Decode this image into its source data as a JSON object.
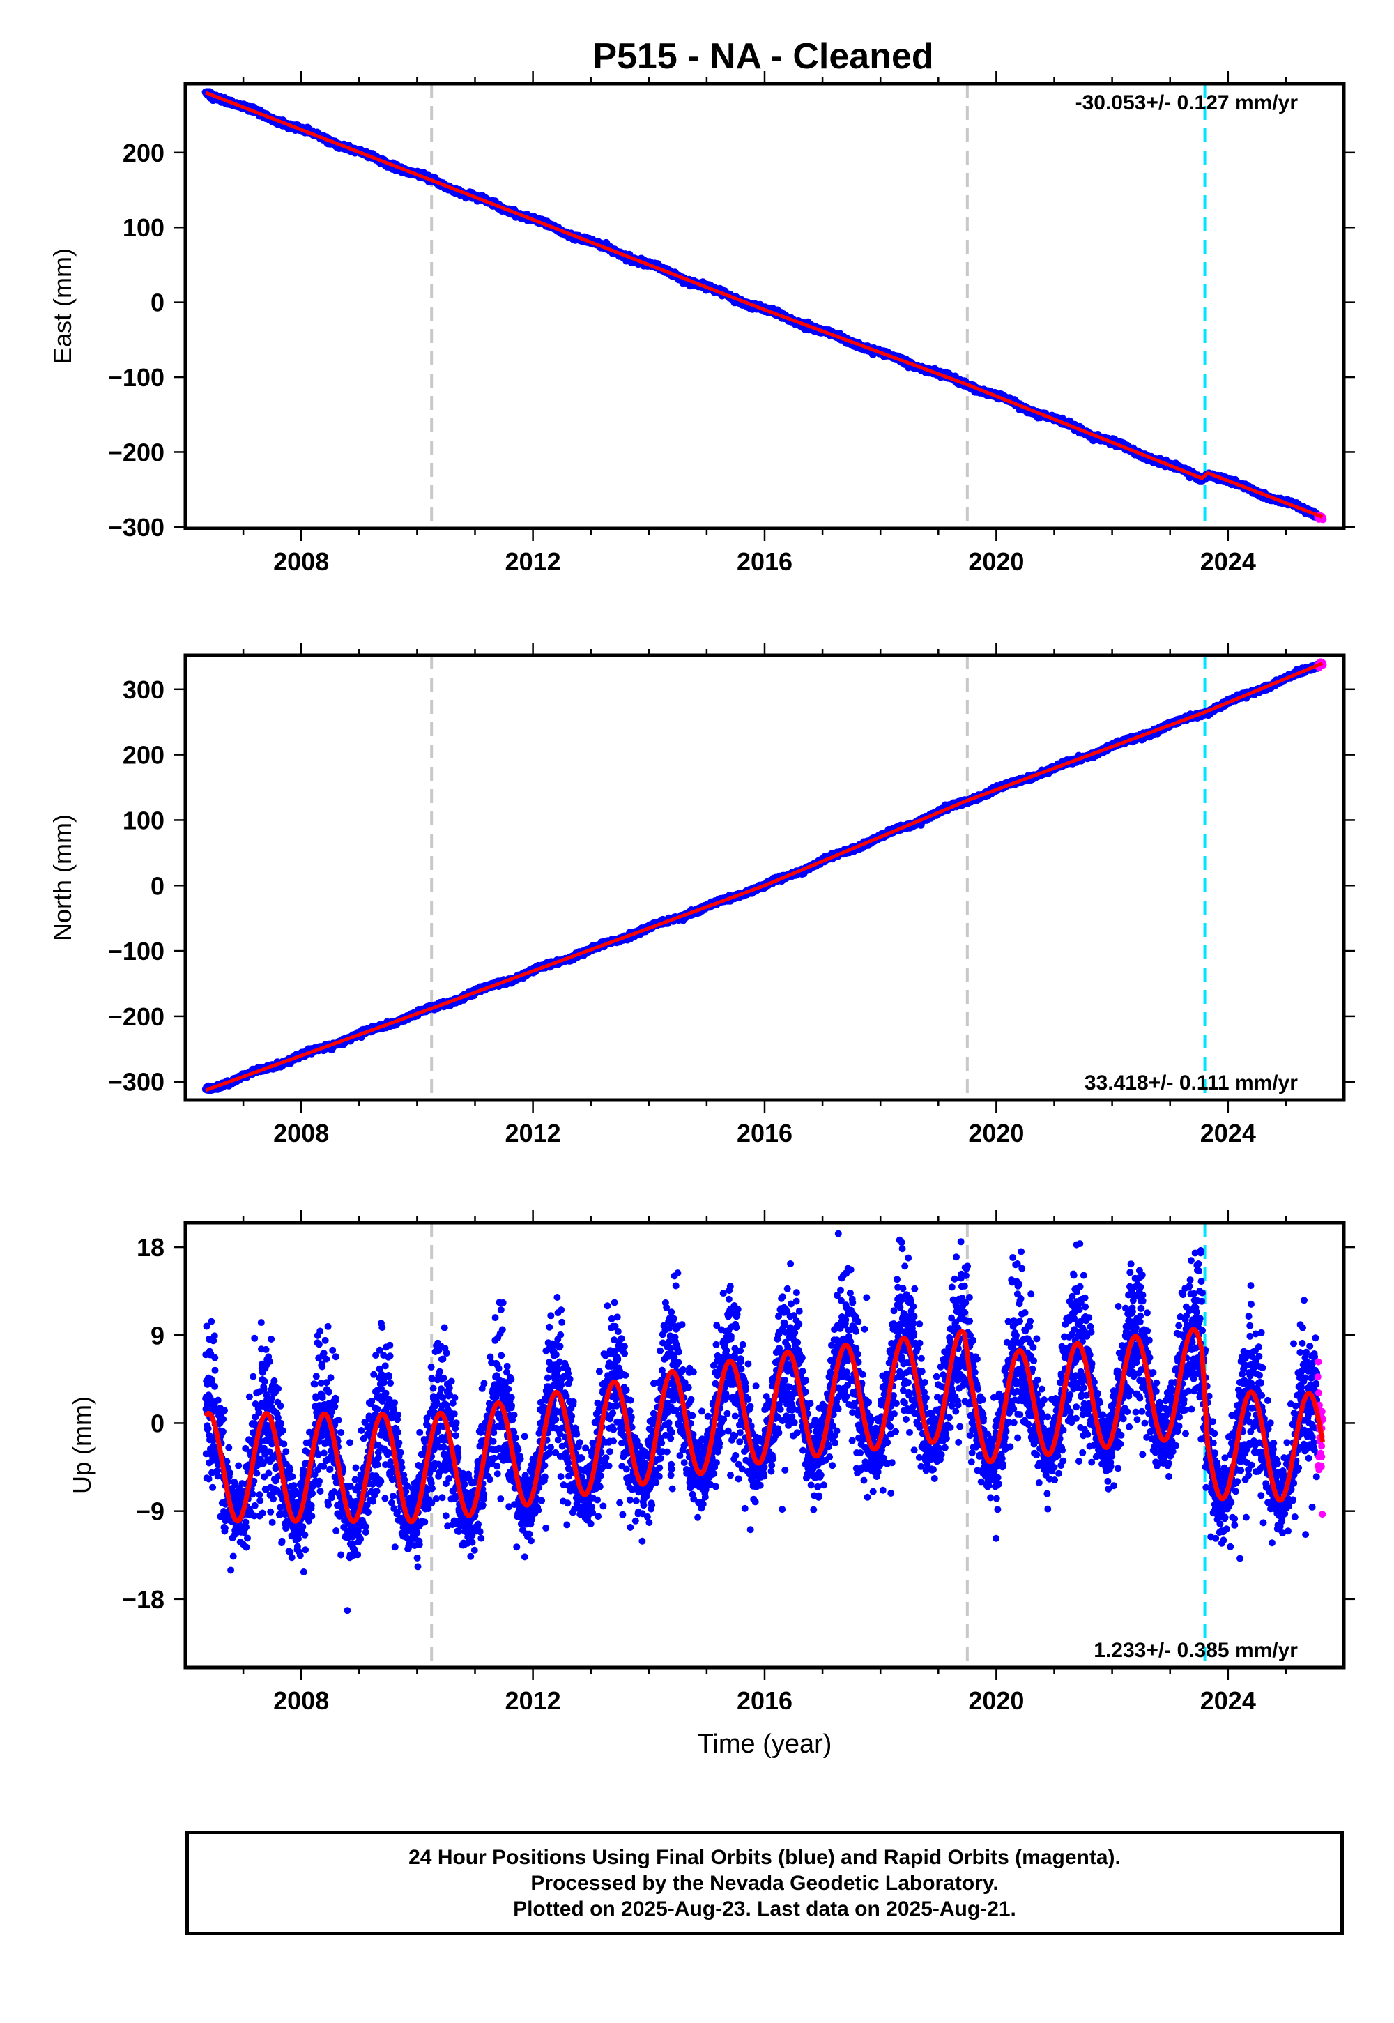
{
  "title": "P515  - NA - Cleaned",
  "xlabel": "Time (year)",
  "footer": [
    "24 Hour Positions Using Final Orbits (blue) and Rapid Orbits (magenta).",
    "Processed by the Nevada Geodetic Laboratory.",
    "Plotted on 2025-Aug-23. Last data on 2025-Aug-21."
  ],
  "colors": {
    "final": "#0000ff",
    "rapid": "#ff00ff",
    "model": "#ff0000",
    "break_gray": "#c8c8c8",
    "break_cyan": "#00e5ff"
  },
  "chart_data": [
    {
      "type": "scatter",
      "ylabel": "East (mm)",
      "rate_label": "-30.053+/- 0.127 mm/yr",
      "xlim": [
        2006.0,
        2026.0
      ],
      "ylim": [
        -302,
        292
      ],
      "x_ticks": [
        2008,
        2012,
        2016,
        2020,
        2024
      ],
      "y_ticks": [
        200,
        100,
        0,
        -100,
        -200,
        -300
      ],
      "y_tick_labels": [
        "200",
        "100",
        "0",
        "−100",
        "−200",
        "−300"
      ],
      "data_start": 2006.35,
      "data_end": 2025.64,
      "rapid_start": 2025.55,
      "breaks_gray": [
        2010.25,
        2019.5
      ],
      "breaks_cyan": [
        2023.6
      ],
      "series_model": [
        [
          2006.35,
          280
        ],
        [
          2010.25,
          163
        ],
        [
          2016,
          -10
        ],
        [
          2019.5,
          -110
        ],
        [
          2023.55,
          -235
        ],
        [
          2023.65,
          -228
        ],
        [
          2025.64,
          -287
        ]
      ]
    },
    {
      "type": "scatter",
      "ylabel": "North (mm)",
      "rate_label": "33.418+/- 0.111 mm/yr",
      "xlim": [
        2006.0,
        2026.0
      ],
      "ylim": [
        -328,
        352
      ],
      "x_ticks": [
        2008,
        2012,
        2016,
        2020,
        2024
      ],
      "y_ticks": [
        300,
        200,
        100,
        0,
        -100,
        -200,
        -300
      ],
      "y_tick_labels": [
        "300",
        "200",
        "100",
        "0",
        "−100",
        "−200",
        "−300"
      ],
      "data_start": 2006.35,
      "data_end": 2025.64,
      "rapid_start": 2025.55,
      "breaks_gray": [
        2010.25,
        2019.5
      ],
      "breaks_cyan": [
        2023.6
      ],
      "series_model": [
        [
          2006.35,
          -313
        ],
        [
          2010.25,
          -188
        ],
        [
          2016,
          0
        ],
        [
          2019.5,
          130
        ],
        [
          2023.6,
          265
        ],
        [
          2025.64,
          340
        ]
      ]
    },
    {
      "type": "scatter",
      "ylabel": "Up (mm)",
      "rate_label": "1.233+/- 0.385 mm/yr",
      "xlim": [
        2006.0,
        2026.0
      ],
      "ylim": [
        -25,
        20.5
      ],
      "x_ticks": [
        2008,
        2012,
        2016,
        2020,
        2024
      ],
      "y_ticks": [
        18,
        9,
        0,
        -9,
        -18
      ],
      "y_tick_labels": [
        "18",
        "9",
        "0",
        "−9",
        "−18"
      ],
      "data_start": 2006.35,
      "data_end": 2025.64,
      "rapid_start": 2025.55,
      "breaks_gray": [
        2010.25,
        2019.5
      ],
      "breaks_cyan": [
        2023.6
      ],
      "seasonal_amplitude": 5.5,
      "series_model": [
        [
          2006.35,
          -4.5
        ],
        [
          2010.25,
          -4.6
        ],
        [
          2010.3,
          -4.6
        ],
        [
          2016,
          1.5
        ],
        [
          2019.45,
          3.9
        ],
        [
          2019.55,
          1.3
        ],
        [
          2023.55,
          4.2
        ],
        [
          2023.65,
          -2.2
        ],
        [
          2025.64,
          -2.5
        ]
      ]
    }
  ]
}
